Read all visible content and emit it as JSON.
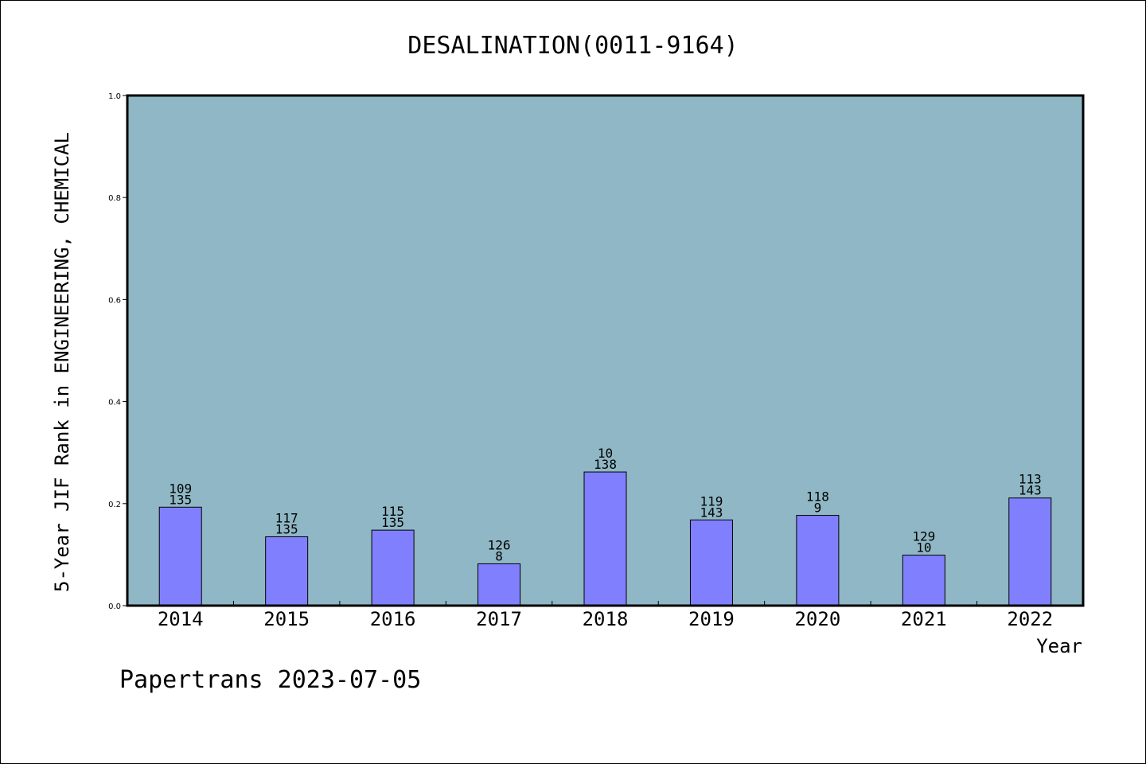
{
  "chart_data": {
    "type": "bar",
    "title": "DESALINATION(0011-9164)",
    "xlabel": "Year",
    "ylabel": "5-Year JIF Rank in ENGINEERING, CHEMICAL",
    "ylim": [
      0,
      1.0
    ],
    "yticks": [
      "0.0",
      "0.2",
      "0.4",
      "0.6",
      "0.8",
      "1.0"
    ],
    "categories": [
      "2014",
      "2015",
      "2016",
      "2017",
      "2018",
      "2019",
      "2020",
      "2021",
      "2022"
    ],
    "values": [
      0.193,
      0.135,
      0.148,
      0.082,
      0.262,
      0.168,
      0.177,
      0.099,
      0.211
    ],
    "rank_labels": [
      "109",
      "117",
      "115",
      "126",
      "10",
      "119",
      "118",
      "129",
      "113"
    ],
    "total_labels": [
      "135",
      "135",
      "135",
      "8",
      "138",
      "143",
      "9",
      "10",
      "143"
    ],
    "plot_background": "#8fb7c5",
    "bar_color": "#8080ff",
    "grid": false,
    "legend": "none"
  },
  "footer": {
    "text": "Papertrans 2023-07-05"
  }
}
